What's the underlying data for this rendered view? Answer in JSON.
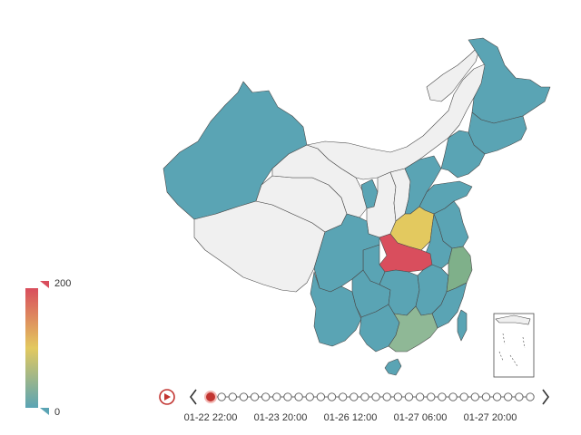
{
  "colors": {
    "high": "#d94e5d",
    "mid": "#e3c95f",
    "low": "#5aa4b4",
    "green": "#7fb08a",
    "lightgreen": "#8fb896",
    "nodata": "#f0f0f0",
    "border": "#4a4a4a"
  },
  "visual_map": {
    "max_label": "200",
    "min_label": "0",
    "max": 200,
    "min": 0
  },
  "timeline": {
    "labels": [
      "01-22 22:00",
      "01-23 20:00",
      "01-26 12:00",
      "01-27 06:00",
      "01-27 20:00"
    ],
    "current_index": 0,
    "total_points": 30,
    "play_icon": "play-icon",
    "prev_icon": "chevron-left-icon",
    "next_icon": "chevron-right-icon"
  },
  "regions": [
    {
      "name": "heilongjiang",
      "level": "low"
    },
    {
      "name": "jilin",
      "level": "low"
    },
    {
      "name": "liaoning",
      "level": "low"
    },
    {
      "name": "inner-mongolia",
      "level": "nodata"
    },
    {
      "name": "xinjiang",
      "level": "low"
    },
    {
      "name": "tibet",
      "level": "nodata"
    },
    {
      "name": "qinghai",
      "level": "nodata"
    },
    {
      "name": "gansu",
      "level": "nodata"
    },
    {
      "name": "ningxia",
      "level": "low"
    },
    {
      "name": "shaanxi",
      "level": "nodata"
    },
    {
      "name": "shanxi",
      "level": "nodata"
    },
    {
      "name": "hebei",
      "level": "low"
    },
    {
      "name": "shandong",
      "level": "low"
    },
    {
      "name": "henan",
      "level": "mid"
    },
    {
      "name": "hubei",
      "level": "high"
    },
    {
      "name": "sichuan",
      "level": "low"
    },
    {
      "name": "chongqing",
      "level": "low"
    },
    {
      "name": "yunnan",
      "level": "low"
    },
    {
      "name": "guizhou",
      "level": "low"
    },
    {
      "name": "hunan",
      "level": "low"
    },
    {
      "name": "jiangxi",
      "level": "low"
    },
    {
      "name": "anhui",
      "level": "low"
    },
    {
      "name": "jiangsu",
      "level": "low"
    },
    {
      "name": "zhejiang",
      "level": "green"
    },
    {
      "name": "fujian",
      "level": "low"
    },
    {
      "name": "guangdong",
      "level": "lightgreen"
    },
    {
      "name": "guangxi",
      "level": "low"
    },
    {
      "name": "hainan",
      "level": "low"
    },
    {
      "name": "taiwan",
      "level": "low"
    },
    {
      "name": "south-china-sea-inset",
      "level": "nodata"
    }
  ]
}
